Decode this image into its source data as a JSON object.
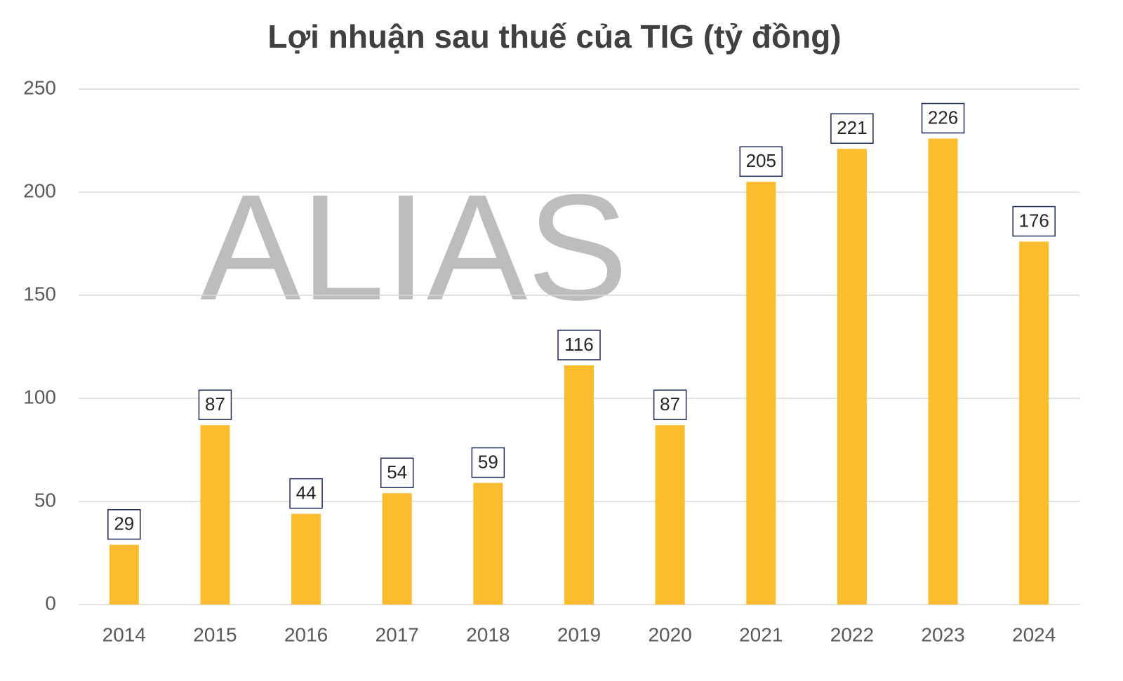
{
  "chart_data": {
    "type": "bar",
    "title": "Lợi nhuận sau thuế của TIG (tỷ đồng)",
    "watermark": "ALIAS",
    "categories": [
      "2014",
      "2015",
      "2016",
      "2017",
      "2018",
      "2019",
      "2020",
      "2021",
      "2022",
      "2023",
      "2024"
    ],
    "values": [
      29,
      87,
      44,
      54,
      59,
      116,
      87,
      205,
      221,
      226,
      176
    ],
    "color": "#fbbc2d",
    "ylim": [
      0,
      250
    ],
    "yticks": [
      0,
      50,
      100,
      150,
      200,
      250
    ],
    "grid": true
  }
}
